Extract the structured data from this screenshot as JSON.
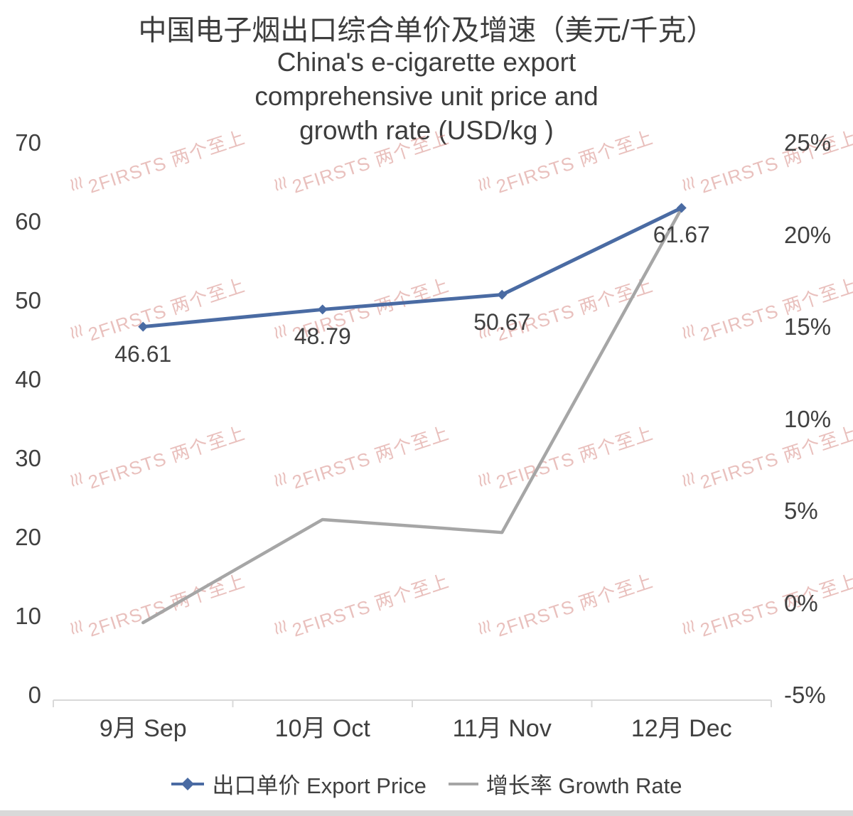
{
  "title": {
    "zh": "中国电子烟出口综合单价及增速（美元/千克）",
    "en": "China's e-cigarette export comprehensive unit price and growth rate (USD/kg )"
  },
  "legend": {
    "export_price": "出口单价 Export Price",
    "growth_rate": "增长率 Growth Rate"
  },
  "watermark": {
    "text": "2FIRSTS 两个至上"
  },
  "colors": {
    "export_price": "#4a6ba3",
    "growth_rate": "#a6a6a6",
    "watermark": "rgba(203,105,97,0.42)",
    "axis_text": "#404040",
    "axis_line": "#d9d9d9"
  },
  "chart_data": {
    "type": "line",
    "title": "中国电子烟出口综合单价及增速（美元/千克） China's e-cigarette export comprehensive unit price and growth rate (USD/kg )",
    "categories": [
      "9月 Sep",
      "10月 Oct",
      "11月 Nov",
      "12月 Dec"
    ],
    "series": [
      {
        "name": "出口单价 Export Price",
        "axis": "left",
        "values": [
          46.61,
          48.79,
          50.67,
          61.67
        ],
        "labels": [
          "46.61",
          "48.79",
          "50.67",
          "61.67"
        ],
        "color": "#4a6ba3",
        "marker": "diamond"
      },
      {
        "name": "增长率 Growth Rate",
        "axis": "right",
        "values": [
          -1.1,
          4.5,
          3.8,
          21.4
        ],
        "labels": [],
        "color": "#a6a6a6",
        "marker": "none"
      }
    ],
    "left_axis": {
      "min": 0,
      "max": 70,
      "step": 10,
      "ticks": [
        "0",
        "10",
        "20",
        "30",
        "40",
        "50",
        "60",
        "70"
      ]
    },
    "right_axis": {
      "min": -5,
      "max": 25,
      "step": 5,
      "ticks": [
        "-5%",
        "0%",
        "5%",
        "10%",
        "15%",
        "20%",
        "25%"
      ]
    },
    "grid": false,
    "legend_position": "bottom"
  }
}
